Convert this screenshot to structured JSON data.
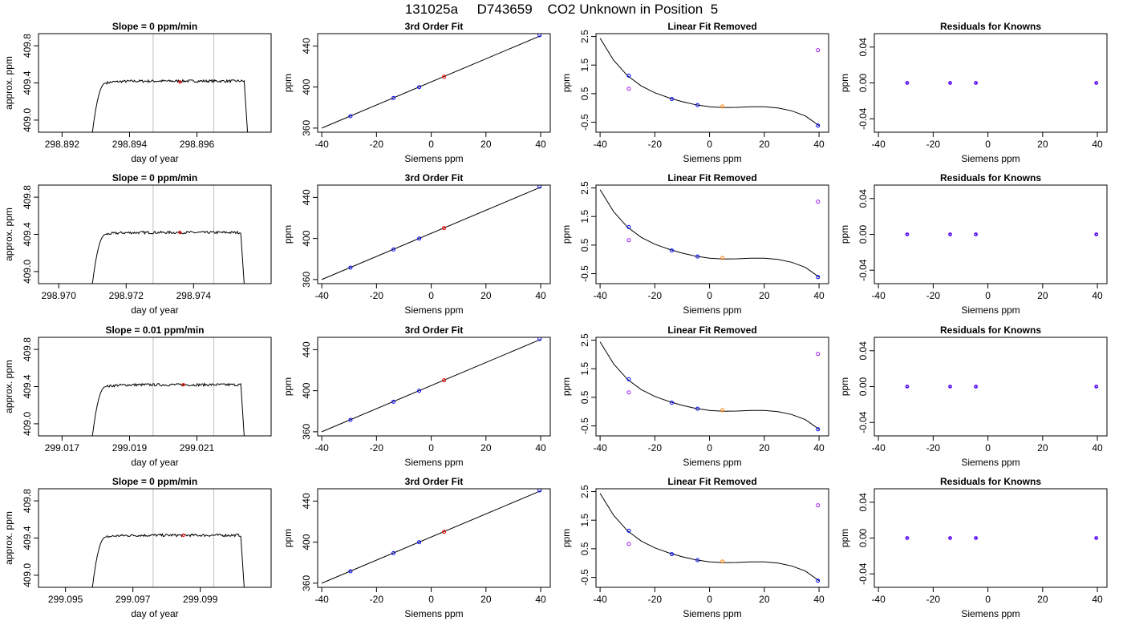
{
  "title": "131025a     D743659    CO2 Unknown in Position  5",
  "colors": {
    "trace": "#000000",
    "window_line": "#bebebe",
    "known_point": "#0000ff",
    "unknown_point": "#ff7f00",
    "residual_marker": "#a020f0",
    "marker_red": "#ff0000"
  },
  "chart_data": [
    {
      "type": "line",
      "row": 1,
      "col": 1,
      "title": "Slope =  0  ppm/min",
      "xlabel": "day of year",
      "ylabel": "approx. ppm",
      "xlim": [
        298.8913,
        298.8982
      ],
      "ylim": [
        408.87,
        409.93
      ],
      "xticks": [
        298.892,
        298.894,
        298.896
      ],
      "xtick_labels": [
        "298.892",
        "298.894",
        "298.896"
      ],
      "yticks": [
        409.0,
        409.4,
        409.8
      ],
      "ytick_labels": [
        "409.0",
        "409.4",
        "409.8"
      ],
      "series": [
        {
          "x_start": 298.8929,
          "x_rise_end": 298.8933,
          "x_plateau_end": 298.8974,
          "x_end": 298.8975,
          "y_low": 408.87,
          "y_plateau": 409.42
        }
      ],
      "window": [
        298.8947,
        298.8965
      ],
      "marker": {
        "x": 298.8955,
        "y": 409.41
      }
    },
    {
      "type": "line",
      "row": 2,
      "col": 1,
      "title": "Slope =  0  ppm/min",
      "xlabel": "day of year",
      "ylabel": "approx. ppm",
      "xlim": [
        298.9694,
        298.9763
      ],
      "ylim": [
        408.87,
        409.93
      ],
      "xticks": [
        298.97,
        298.972,
        298.974
      ],
      "xtick_labels": [
        "298.970",
        "298.972",
        "298.974"
      ],
      "yticks": [
        409.0,
        409.4,
        409.8
      ],
      "ytick_labels": [
        "409.0",
        "409.4",
        "409.8"
      ],
      "series": [
        {
          "x_start": 298.971,
          "x_rise_end": 298.9714,
          "x_plateau_end": 298.9754,
          "x_end": 298.9755,
          "y_low": 408.87,
          "y_plateau": 409.42
        }
      ],
      "window": [
        298.9728,
        298.9746
      ],
      "marker": {
        "x": 298.9736,
        "y": 409.42
      }
    },
    {
      "type": "line",
      "row": 3,
      "col": 1,
      "title": "Slope =  0.01  ppm/min",
      "xlabel": "day of year",
      "ylabel": "approx. ppm",
      "xlim": [
        299.0163,
        299.0232
      ],
      "ylim": [
        408.87,
        409.93
      ],
      "xticks": [
        299.017,
        299.019,
        299.021
      ],
      "xtick_labels": [
        "299.017",
        "299.019",
        "299.021"
      ],
      "yticks": [
        409.0,
        409.4,
        409.8
      ],
      "ytick_labels": [
        "409.0",
        "409.4",
        "409.8"
      ],
      "series": [
        {
          "x_start": 299.0179,
          "x_rise_end": 299.0183,
          "x_plateau_end": 299.0223,
          "x_end": 299.0224,
          "y_low": 408.87,
          "y_plateau": 409.42
        }
      ],
      "window": [
        299.0197,
        299.0215
      ],
      "marker": {
        "x": 299.0206,
        "y": 409.42
      }
    },
    {
      "type": "line",
      "row": 4,
      "col": 1,
      "title": "Slope =  0  ppm/min",
      "xlabel": "day of year",
      "ylabel": "approx. ppm",
      "xlim": [
        299.0942,
        299.1011
      ],
      "ylim": [
        408.87,
        409.93
      ],
      "xticks": [
        299.095,
        299.097,
        299.099
      ],
      "xtick_labels": [
        "299.095",
        "299.097",
        "299.099"
      ],
      "yticks": [
        409.0,
        409.4,
        409.8
      ],
      "ytick_labels": [
        "409.0",
        "409.4",
        "409.8"
      ],
      "series": [
        {
          "x_start": 299.0958,
          "x_rise_end": 299.0962,
          "x_plateau_end": 299.1002,
          "x_end": 299.1003,
          "y_low": 408.87,
          "y_plateau": 409.43
        }
      ],
      "window": [
        299.0976,
        299.0994
      ],
      "marker": {
        "x": 299.0985,
        "y": 409.43
      }
    },
    {
      "type": "scatter",
      "row": 1,
      "col": 2,
      "title": "3rd Order Fit",
      "xlabel": "Siemens ppm",
      "ylabel": "ppm",
      "xlim": [
        -41.5,
        43.5
      ],
      "ylim": [
        356,
        452
      ],
      "xticks": [
        -40,
        -20,
        0,
        20,
        40
      ],
      "xtick_labels": [
        "-40",
        "-20",
        "0",
        "20",
        "40"
      ],
      "yticks": [
        360,
        400,
        440
      ],
      "ytick_labels": [
        "360",
        "400",
        "440"
      ],
      "fit_line": {
        "x": [
          -40,
          40
        ],
        "y": [
          360,
          450
        ]
      },
      "known_points": {
        "x": [
          -29.5,
          -13.8,
          -4.4,
          39.6
        ],
        "y": [
          371.6,
          389.3,
          399.9,
          450.5
        ]
      },
      "unknown_points": {
        "x": [
          4.7
        ],
        "y": [
          410.1
        ]
      }
    },
    {
      "type": "scatter",
      "row": 2,
      "col": 2,
      "title": "3rd Order Fit",
      "xlabel": "Siemens ppm",
      "ylabel": "ppm",
      "xlim": [
        -41.5,
        43.5
      ],
      "ylim": [
        356,
        452
      ],
      "xticks": [
        -40,
        -20,
        0,
        20,
        40
      ],
      "xtick_labels": [
        "-40",
        "-20",
        "0",
        "20",
        "40"
      ],
      "yticks": [
        360,
        400,
        440
      ],
      "ytick_labels": [
        "360",
        "400",
        "440"
      ],
      "fit_line": {
        "x": [
          -40,
          40
        ],
        "y": [
          360,
          450
        ]
      },
      "known_points": {
        "x": [
          -29.5,
          -13.8,
          -4.4,
          39.6
        ],
        "y": [
          371.6,
          389.3,
          399.9,
          450.5
        ]
      },
      "unknown_points": {
        "x": [
          4.7
        ],
        "y": [
          410.1
        ]
      }
    },
    {
      "type": "scatter",
      "row": 3,
      "col": 2,
      "title": "3rd Order Fit",
      "xlabel": "Siemens ppm",
      "ylabel": "ppm",
      "xlim": [
        -41.5,
        43.5
      ],
      "ylim": [
        356,
        452
      ],
      "xticks": [
        -40,
        -20,
        0,
        20,
        40
      ],
      "xtick_labels": [
        "-40",
        "-20",
        "0",
        "20",
        "40"
      ],
      "yticks": [
        360,
        400,
        440
      ],
      "ytick_labels": [
        "360",
        "400",
        "440"
      ],
      "fit_line": {
        "x": [
          -40,
          40
        ],
        "y": [
          360,
          450
        ]
      },
      "known_points": {
        "x": [
          -29.5,
          -13.8,
          -4.4,
          39.6
        ],
        "y": [
          371.6,
          389.3,
          399.9,
          450.5
        ]
      },
      "unknown_points": {
        "x": [
          4.7
        ],
        "y": [
          410.1
        ]
      }
    },
    {
      "type": "scatter",
      "row": 4,
      "col": 2,
      "title": "3rd Order Fit",
      "xlabel": "Siemens ppm",
      "ylabel": "ppm",
      "xlim": [
        -41.5,
        43.5
      ],
      "ylim": [
        356,
        452
      ],
      "xticks": [
        -40,
        -20,
        0,
        20,
        40
      ],
      "xtick_labels": [
        "-40",
        "-20",
        "0",
        "20",
        "40"
      ],
      "yticks": [
        360,
        400,
        440
      ],
      "ytick_labels": [
        "360",
        "400",
        "440"
      ],
      "fit_line": {
        "x": [
          -40,
          40
        ],
        "y": [
          360,
          450
        ]
      },
      "known_points": {
        "x": [
          -29.5,
          -13.8,
          -4.4,
          39.6
        ],
        "y": [
          371.6,
          389.3,
          399.9,
          450.5
        ]
      },
      "unknown_points": {
        "x": [
          4.7
        ],
        "y": [
          410.1
        ]
      }
    },
    {
      "type": "scatter",
      "row": 1,
      "col": 3,
      "title": "Linear Fit Removed",
      "xlabel": "Siemens ppm",
      "ylabel": "ppm",
      "xlim": [
        -41.5,
        43.5
      ],
      "ylim": [
        -0.85,
        2.6
      ],
      "xticks": [
        -40,
        -20,
        0,
        20,
        40
      ],
      "xtick_labels": [
        "-40",
        "-20",
        "0",
        "20",
        "40"
      ],
      "yticks": [
        -0.5,
        0.5,
        1.5,
        2.5
      ],
      "ytick_labels": [
        "-0.5",
        "0.5",
        "1.5",
        "2.5"
      ],
      "curve": {
        "x": [
          -40,
          -35,
          -30,
          -25,
          -20,
          -15,
          -10,
          -5,
          0,
          5,
          10,
          15,
          20,
          25,
          30,
          35,
          40
        ],
        "y": [
          2.44,
          1.66,
          1.13,
          0.77,
          0.53,
          0.36,
          0.22,
          0.11,
          0.04,
          0.01,
          0.02,
          0.04,
          0.04,
          0.0,
          -0.1,
          -0.28,
          -0.62
        ]
      },
      "known_points": {
        "x": [
          -29.5,
          -13.8,
          -4.4,
          39.6
        ],
        "y": [
          1.13,
          0.31,
          0.1,
          -0.62
        ]
      },
      "unknown_points": {
        "x": [
          4.7
        ],
        "y": [
          0.05
        ]
      },
      "other_points": {
        "x": [
          -29.5,
          39.6
        ],
        "y": [
          0.67,
          2.02
        ]
      }
    },
    {
      "type": "scatter",
      "row": 2,
      "col": 3,
      "title": "Linear Fit Removed",
      "xlabel": "Siemens ppm",
      "ylabel": "ppm",
      "xlim": [
        -41.5,
        43.5
      ],
      "ylim": [
        -0.85,
        2.6
      ],
      "xticks": [
        -40,
        -20,
        0,
        20,
        40
      ],
      "xtick_labels": [
        "-40",
        "-20",
        "0",
        "20",
        "40"
      ],
      "yticks": [
        -0.5,
        0.5,
        1.5,
        2.5
      ],
      "ytick_labels": [
        "-0.5",
        "0.5",
        "1.5",
        "2.5"
      ],
      "curve": {
        "x": [
          -40,
          -35,
          -30,
          -25,
          -20,
          -15,
          -10,
          -5,
          0,
          5,
          10,
          15,
          20,
          25,
          30,
          35,
          40
        ],
        "y": [
          2.44,
          1.66,
          1.13,
          0.77,
          0.53,
          0.36,
          0.22,
          0.11,
          0.04,
          0.01,
          0.02,
          0.04,
          0.04,
          0.0,
          -0.1,
          -0.28,
          -0.62
        ]
      },
      "known_points": {
        "x": [
          -29.5,
          -13.8,
          -4.4,
          39.6
        ],
        "y": [
          1.13,
          0.31,
          0.1,
          -0.62
        ]
      },
      "unknown_points": {
        "x": [
          4.7
        ],
        "y": [
          0.05
        ]
      },
      "other_points": {
        "x": [
          -29.5,
          39.6
        ],
        "y": [
          0.67,
          2.02
        ]
      }
    },
    {
      "type": "scatter",
      "row": 3,
      "col": 3,
      "title": "Linear Fit Removed",
      "xlabel": "Siemens ppm",
      "ylabel": "ppm",
      "xlim": [
        -41.5,
        43.5
      ],
      "ylim": [
        -0.85,
        2.6
      ],
      "xticks": [
        -40,
        -20,
        0,
        20,
        40
      ],
      "xtick_labels": [
        "-40",
        "-20",
        "0",
        "20",
        "40"
      ],
      "yticks": [
        -0.5,
        0.5,
        1.5,
        2.5
      ],
      "ytick_labels": [
        "-0.5",
        "0.5",
        "1.5",
        "2.5"
      ],
      "curve": {
        "x": [
          -40,
          -35,
          -30,
          -25,
          -20,
          -15,
          -10,
          -5,
          0,
          5,
          10,
          15,
          20,
          25,
          30,
          35,
          40
        ],
        "y": [
          2.44,
          1.66,
          1.13,
          0.77,
          0.53,
          0.36,
          0.22,
          0.11,
          0.04,
          0.01,
          0.02,
          0.04,
          0.04,
          0.0,
          -0.1,
          -0.28,
          -0.62
        ]
      },
      "known_points": {
        "x": [
          -29.5,
          -13.8,
          -4.4,
          39.6
        ],
        "y": [
          1.13,
          0.31,
          0.1,
          -0.62
        ]
      },
      "unknown_points": {
        "x": [
          4.7
        ],
        "y": [
          0.05
        ]
      },
      "other_points": {
        "x": [
          -29.5,
          39.6
        ],
        "y": [
          0.67,
          2.02
        ]
      }
    },
    {
      "type": "scatter",
      "row": 4,
      "col": 3,
      "title": "Linear Fit Removed",
      "xlabel": "Siemens ppm",
      "ylabel": "ppm",
      "xlim": [
        -41.5,
        43.5
      ],
      "ylim": [
        -0.85,
        2.6
      ],
      "xticks": [
        -40,
        -20,
        0,
        20,
        40
      ],
      "xtick_labels": [
        "-40",
        "-20",
        "0",
        "20",
        "40"
      ],
      "yticks": [
        -0.5,
        0.5,
        1.5,
        2.5
      ],
      "ytick_labels": [
        "-0.5",
        "0.5",
        "1.5",
        "2.5"
      ],
      "curve": {
        "x": [
          -40,
          -35,
          -30,
          -25,
          -20,
          -15,
          -10,
          -5,
          0,
          5,
          10,
          15,
          20,
          25,
          30,
          35,
          40
        ],
        "y": [
          2.44,
          1.66,
          1.13,
          0.77,
          0.53,
          0.36,
          0.22,
          0.11,
          0.04,
          0.01,
          0.02,
          0.04,
          0.04,
          0.0,
          -0.1,
          -0.28,
          -0.62
        ]
      },
      "known_points": {
        "x": [
          -29.5,
          -13.8,
          -4.4,
          39.6
        ],
        "y": [
          1.13,
          0.31,
          0.1,
          -0.62
        ]
      },
      "unknown_points": {
        "x": [
          4.7
        ],
        "y": [
          0.05
        ]
      },
      "other_points": {
        "x": [
          -29.5,
          39.6
        ],
        "y": [
          0.67,
          2.02
        ]
      }
    },
    {
      "type": "scatter",
      "row": 1,
      "col": 4,
      "title": "Residuals for Knowns",
      "xlabel": "Siemens ppm",
      "ylabel": "ppm",
      "xlim": [
        -41.5,
        43.5
      ],
      "ylim": [
        -0.055,
        0.055
      ],
      "xticks": [
        -40,
        -20,
        0,
        20,
        40
      ],
      "xtick_labels": [
        "-40",
        "-20",
        "0",
        "20",
        "40"
      ],
      "yticks": [
        -0.04,
        0.0,
        0.04
      ],
      "ytick_labels": [
        "-0.04",
        "0.00",
        "0.04"
      ],
      "known_points": {
        "x": [
          -29.5,
          -13.8,
          -4.4,
          39.6
        ],
        "y": [
          0.0,
          0.0,
          0.0,
          0.0
        ]
      }
    },
    {
      "type": "scatter",
      "row": 2,
      "col": 4,
      "title": "Residuals for Knowns",
      "xlabel": "Siemens ppm",
      "ylabel": "ppm",
      "xlim": [
        -41.5,
        43.5
      ],
      "ylim": [
        -0.055,
        0.055
      ],
      "xticks": [
        -40,
        -20,
        0,
        20,
        40
      ],
      "xtick_labels": [
        "-40",
        "-20",
        "0",
        "20",
        "40"
      ],
      "yticks": [
        -0.04,
        0.0,
        0.04
      ],
      "ytick_labels": [
        "-0.04",
        "0.00",
        "0.04"
      ],
      "known_points": {
        "x": [
          -29.5,
          -13.8,
          -4.4,
          39.6
        ],
        "y": [
          0.0,
          0.0,
          0.0,
          0.0
        ]
      }
    },
    {
      "type": "scatter",
      "row": 3,
      "col": 4,
      "title": "Residuals for Knowns",
      "xlabel": "Siemens ppm",
      "ylabel": "ppm",
      "xlim": [
        -41.5,
        43.5
      ],
      "ylim": [
        -0.055,
        0.055
      ],
      "xticks": [
        -40,
        -20,
        0,
        20,
        40
      ],
      "xtick_labels": [
        "-40",
        "-20",
        "0",
        "20",
        "40"
      ],
      "yticks": [
        -0.04,
        0.0,
        0.04
      ],
      "ytick_labels": [
        "-0.04",
        "0.00",
        "0.04"
      ],
      "known_points": {
        "x": [
          -29.5,
          -13.8,
          -4.4,
          39.6
        ],
        "y": [
          0.0,
          0.0,
          0.0,
          0.0
        ]
      }
    },
    {
      "type": "scatter",
      "row": 4,
      "col": 4,
      "title": "Residuals for Knowns",
      "xlabel": "Siemens ppm",
      "ylabel": "ppm",
      "xlim": [
        -41.5,
        43.5
      ],
      "ylim": [
        -0.055,
        0.055
      ],
      "xticks": [
        -40,
        -20,
        0,
        20,
        40
      ],
      "xtick_labels": [
        "-40",
        "-20",
        "0",
        "20",
        "40"
      ],
      "yticks": [
        -0.04,
        0.0,
        0.04
      ],
      "ytick_labels": [
        "-0.04",
        "0.00",
        "0.04"
      ],
      "known_points": {
        "x": [
          -29.5,
          -13.8,
          -4.4,
          39.6
        ],
        "y": [
          0.0,
          0.0,
          0.0,
          0.0
        ]
      }
    }
  ]
}
